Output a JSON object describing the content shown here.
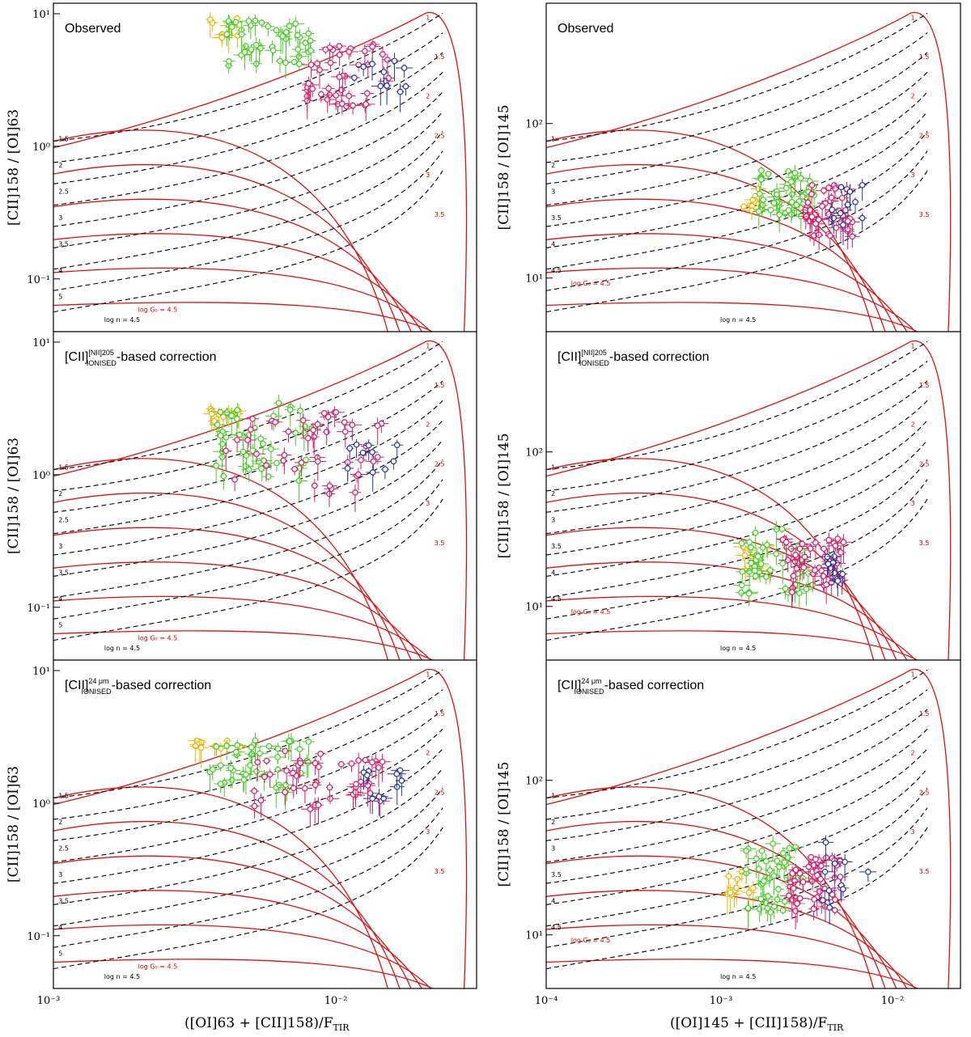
{
  "figure": {
    "xlabel_left": "([OI]63 + [CII]158)/F",
    "xlabel_right": "([OI]145 + [CII]158)/F",
    "xlabel_sub": "TIR",
    "ylabel_left": "[CII]158 / [OI]63",
    "ylabel_right": "[CII]158 / [OI]145"
  },
  "titles": {
    "observed": "Observed",
    "nii_prefix": "[CII]",
    "nii_sup": "[NII]205",
    "nii_sub": "IONISED",
    "nii_suffix": "-based correction",
    "mu_sup": "24 μm",
    "mu_sub": "IONISED",
    "mu_suffix": "-based correction"
  },
  "tick_labels": {
    "x_left": [
      "10⁻³",
      "10⁻²"
    ],
    "x_right": [
      "10⁻⁴",
      "10⁻³",
      "10⁻²"
    ],
    "y_left": [
      "10⁻¹",
      "10⁰",
      "10¹"
    ],
    "y_right": [
      "10¹",
      "10²"
    ]
  },
  "model_labels": {
    "logn_prefix": "log n = ",
    "logG0_prefix": "log G₀ = ",
    "logn_values": [
      "1",
      "1.5",
      "2",
      "2.5",
      "3",
      "3.5",
      "4",
      "4.5",
      "5"
    ],
    "logG0_values": [
      "1",
      "1.5",
      "2",
      "2.5",
      "3",
      "3.5",
      "4",
      "4.5",
      "5"
    ]
  },
  "colors": {
    "series_yellow": "#f0b400",
    "series_green": "#44cc22",
    "series_pink": "#d81b66",
    "series_blue": "#2233aa",
    "model_G0": "#dd1111",
    "model_n": "#000000"
  },
  "chart_data": [
    {
      "type": "scatter",
      "panel": "top-left",
      "title": "Observed",
      "xlabel": "([OI]63 + [CII]158)/F_TIR",
      "ylabel": "[CII]158 / [OI]63",
      "xlim": [
        0.001,
        0.03
      ],
      "ylim": [
        0.04,
        12
      ],
      "xscale": "log",
      "yscale": "log",
      "series": [
        {
          "color": "yellow",
          "x_range": [
            0.0035,
            0.0045
          ],
          "y_range": [
            6.5,
            9.5
          ]
        },
        {
          "color": "green",
          "x_range": [
            0.004,
            0.008
          ],
          "y_range": [
            4.0,
            9.0
          ]
        },
        {
          "color": "pink",
          "x_range": [
            0.0075,
            0.015
          ],
          "y_range": [
            2.0,
            6.0
          ]
        },
        {
          "color": "blue",
          "x_range": [
            0.011,
            0.018
          ],
          "y_range": [
            2.5,
            5.0
          ]
        }
      ]
    },
    {
      "type": "scatter",
      "panel": "top-right",
      "title": "Observed",
      "xlabel": "([OI]145 + [CII]158)/F_TIR",
      "ylabel": "[CII]158 / [OI]145",
      "xlim": [
        0.0001,
        0.03
      ],
      "ylim": [
        4.5,
        600
      ],
      "xscale": "log",
      "yscale": "log",
      "series": [
        {
          "color": "yellow",
          "x_range": [
            0.0015,
            0.002
          ],
          "y_range": [
            25,
            40
          ]
        },
        {
          "color": "green",
          "x_range": [
            0.0018,
            0.004
          ],
          "y_range": [
            25,
            50
          ]
        },
        {
          "color": "pink",
          "x_range": [
            0.0035,
            0.007
          ],
          "y_range": [
            18,
            40
          ]
        },
        {
          "color": "blue",
          "x_range": [
            0.005,
            0.0085
          ],
          "y_range": [
            22,
            45
          ]
        }
      ]
    },
    {
      "type": "scatter",
      "panel": "middle-left",
      "title": "[CII] IONISED [NII]205 -based correction",
      "xlabel": "([OI]63 + [CII]158)/F_TIR",
      "ylabel": "[CII]158 / [OI]63",
      "xlim": [
        0.001,
        0.03
      ],
      "ylim": [
        0.04,
        12
      ],
      "xscale": "log",
      "yscale": "log",
      "series": [
        {
          "color": "yellow",
          "x_range": [
            0.0035,
            0.0045
          ],
          "y_range": [
            2.5,
            3.2
          ]
        },
        {
          "color": "green",
          "x_range": [
            0.0035,
            0.008
          ],
          "y_range": [
            0.9,
            3.5
          ]
        },
        {
          "color": "pink",
          "x_range": [
            0.004,
            0.015
          ],
          "y_range": [
            0.7,
            3.0
          ]
        },
        {
          "color": "blue",
          "x_range": [
            0.01,
            0.018
          ],
          "y_range": [
            0.9,
            1.9
          ]
        }
      ]
    },
    {
      "type": "scatter",
      "panel": "middle-right",
      "title": "[CII] IONISED [NII]205 -based correction",
      "xlabel": "([OI]145 + [CII]158)/F_TIR",
      "ylabel": "[CII]158 / [OI]145",
      "xlim": [
        0.0001,
        0.03
      ],
      "ylim": [
        4.5,
        600
      ],
      "xscale": "log",
      "yscale": "log",
      "series": [
        {
          "color": "yellow",
          "x_range": [
            0.0015,
            0.0022
          ],
          "y_range": [
            15,
            28
          ]
        },
        {
          "color": "green",
          "x_range": [
            0.0014,
            0.004
          ],
          "y_range": [
            12,
            35
          ]
        },
        {
          "color": "pink",
          "x_range": [
            0.0025,
            0.006
          ],
          "y_range": [
            12,
            28
          ]
        },
        {
          "color": "blue",
          "x_range": [
            0.0045,
            0.0065
          ],
          "y_range": [
            14,
            22
          ]
        }
      ]
    },
    {
      "type": "scatter",
      "panel": "bottom-left",
      "title": "[CII] IONISED 24 μm -based correction",
      "xlabel": "([OI]63 + [CII]158)/F_TIR",
      "ylabel": "[CII]158 / [OI]63",
      "xlim": [
        0.001,
        0.03
      ],
      "ylim": [
        0.04,
        12
      ],
      "xscale": "log",
      "yscale": "log",
      "series": [
        {
          "color": "yellow",
          "x_range": [
            0.003,
            0.0045
          ],
          "y_range": [
            2.2,
            3.0
          ]
        },
        {
          "color": "green",
          "x_range": [
            0.0035,
            0.008
          ],
          "y_range": [
            1.2,
            3.0
          ]
        },
        {
          "color": "pink",
          "x_range": [
            0.005,
            0.015
          ],
          "y_range": [
            0.9,
            2.5
          ]
        },
        {
          "color": "blue",
          "x_range": [
            0.012,
            0.018
          ],
          "y_range": [
            1.0,
            1.8
          ]
        }
      ]
    },
    {
      "type": "scatter",
      "panel": "bottom-right",
      "title": "[CII] IONISED 24 μm -based correction",
      "xlabel": "([OI]145 + [CII]158)/F_TIR",
      "ylabel": "[CII]158 / [OI]145",
      "xlim": [
        0.0001,
        0.03
      ],
      "ylim": [
        4.5,
        600
      ],
      "xscale": "log",
      "yscale": "log",
      "series": [
        {
          "color": "yellow",
          "x_range": [
            0.0012,
            0.0018
          ],
          "y_range": [
            18,
            28
          ]
        },
        {
          "color": "green",
          "x_range": [
            0.0015,
            0.0035
          ],
          "y_range": [
            14,
            40
          ]
        },
        {
          "color": "pink",
          "x_range": [
            0.0028,
            0.006
          ],
          "y_range": [
            14,
            32
          ]
        },
        {
          "color": "blue",
          "x_range": [
            0.0045,
            0.0085
          ],
          "y_range": [
            14,
            40
          ]
        }
      ]
    }
  ]
}
